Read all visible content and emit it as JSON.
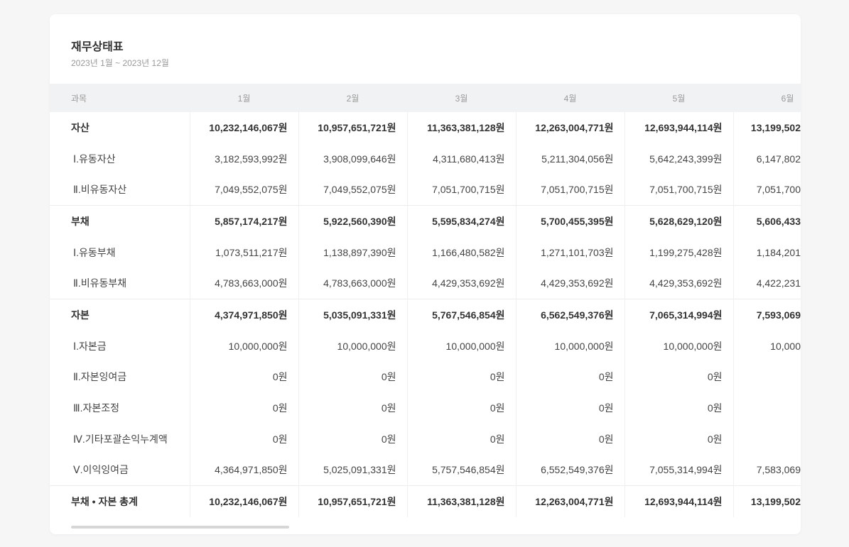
{
  "report": {
    "title": "재무상태표",
    "period": "2023년 1월 ~ 2023년 12월"
  },
  "table": {
    "headers": [
      "과목",
      "1월",
      "2월",
      "3월",
      "4월",
      "5월",
      "6월"
    ],
    "rows": [
      {
        "label": "자산",
        "bold": true,
        "group_start": false,
        "values": [
          "10,232,146,067원",
          "10,957,651,721원",
          "11,363,381,128원",
          "12,263,004,771원",
          "12,693,944,114원",
          "13,199,502"
        ]
      },
      {
        "label": "Ⅰ.유동자산",
        "bold": false,
        "values": [
          "3,182,593,992원",
          "3,908,099,646원",
          "4,311,680,413원",
          "5,211,304,056원",
          "5,642,243,399원",
          "6,147,802"
        ]
      },
      {
        "label": "Ⅱ.비유동자산",
        "bold": false,
        "values": [
          "7,049,552,075원",
          "7,049,552,075원",
          "7,051,700,715원",
          "7,051,700,715원",
          "7,051,700,715원",
          "7,051,700"
        ]
      },
      {
        "label": "부채",
        "bold": true,
        "group_start": true,
        "values": [
          "5,857,174,217원",
          "5,922,560,390원",
          "5,595,834,274원",
          "5,700,455,395원",
          "5,628,629,120원",
          "5,606,433"
        ]
      },
      {
        "label": "Ⅰ.유동부채",
        "bold": false,
        "values": [
          "1,073,511,217원",
          "1,138,897,390원",
          "1,166,480,582원",
          "1,271,101,703원",
          "1,199,275,428원",
          "1,184,201"
        ]
      },
      {
        "label": "Ⅱ.비유동부채",
        "bold": false,
        "values": [
          "4,783,663,000원",
          "4,783,663,000원",
          "4,429,353,692원",
          "4,429,353,692원",
          "4,429,353,692원",
          "4,422,231"
        ]
      },
      {
        "label": "자본",
        "bold": true,
        "group_start": true,
        "values": [
          "4,374,971,850원",
          "5,035,091,331원",
          "5,767,546,854원",
          "6,562,549,376원",
          "7,065,314,994원",
          "7,593,069"
        ]
      },
      {
        "label": "Ⅰ.자본금",
        "bold": false,
        "values": [
          "10,000,000원",
          "10,000,000원",
          "10,000,000원",
          "10,000,000원",
          "10,000,000원",
          "10,000"
        ]
      },
      {
        "label": "Ⅱ.자본잉여금",
        "bold": false,
        "values": [
          "0원",
          "0원",
          "0원",
          "0원",
          "0원",
          ""
        ]
      },
      {
        "label": "Ⅲ.자본조정",
        "bold": false,
        "values": [
          "0원",
          "0원",
          "0원",
          "0원",
          "0원",
          ""
        ]
      },
      {
        "label": "Ⅳ.기타포괄손익누계액",
        "bold": false,
        "values": [
          "0원",
          "0원",
          "0원",
          "0원",
          "0원",
          ""
        ]
      },
      {
        "label": "Ⅴ.이익잉여금",
        "bold": false,
        "values": [
          "4,364,971,850원",
          "5,025,091,331원",
          "5,757,546,854원",
          "6,552,549,376원",
          "7,055,314,994원",
          "7,583,069"
        ]
      },
      {
        "label": "부채 • 자본 총계",
        "bold": true,
        "group_start": true,
        "values": [
          "10,232,146,067원",
          "10,957,651,721원",
          "11,363,381,128원",
          "12,263,004,771원",
          "12,693,944,114원",
          "13,199,502"
        ]
      }
    ]
  }
}
